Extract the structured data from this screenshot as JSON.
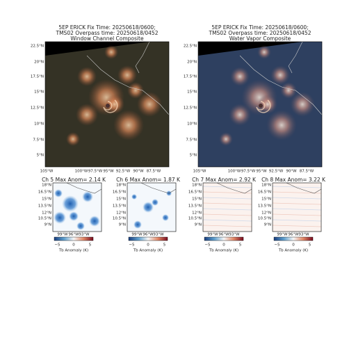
{
  "top_panels": [
    {
      "title_lines": [
        "5EP ERICK Fix Time: 20250618/0600;",
        "TMS02 Overpass time: 20250618/0452",
        "Window Channel Composite"
      ]
    },
    {
      "title_lines": [
        "5EP ERICK Fix Time: 20250618/0600;",
        "TMS02 Overpass time: 20250618/0452",
        "Water Vapor Composite"
      ]
    }
  ],
  "top_yticks": [
    "22.5°N",
    "20°N",
    "17.5°N",
    "15°N",
    "12.5°N",
    "10°N",
    "7.5°N",
    "5°N"
  ],
  "top_xticks": [
    "105°W",
    "100°W",
    "97.5°W",
    "95°W",
    "92.5°W",
    "90°W",
    "87.5°W"
  ],
  "small_panels": [
    {
      "title": "Ch 5 Max Anom= 2.14 K"
    },
    {
      "title": "Ch 6 Max Anom= 1.87 K"
    },
    {
      "title": "Ch 7 Max Anom= 2.92 K"
    },
    {
      "title": "Ch 8 Max Anom= 3.22 K"
    }
  ],
  "small_yticks": [
    "18°N",
    "16.5°N",
    "15°N",
    "13.5°N",
    "12°N",
    "10.5°N",
    "9°N"
  ],
  "small_xticks": [
    "99°W",
    "96°W",
    "93°W"
  ],
  "colorbar_ticks": [
    "−5",
    "0",
    "5"
  ],
  "colorbar_label": "Tb Anomaly (K)"
}
